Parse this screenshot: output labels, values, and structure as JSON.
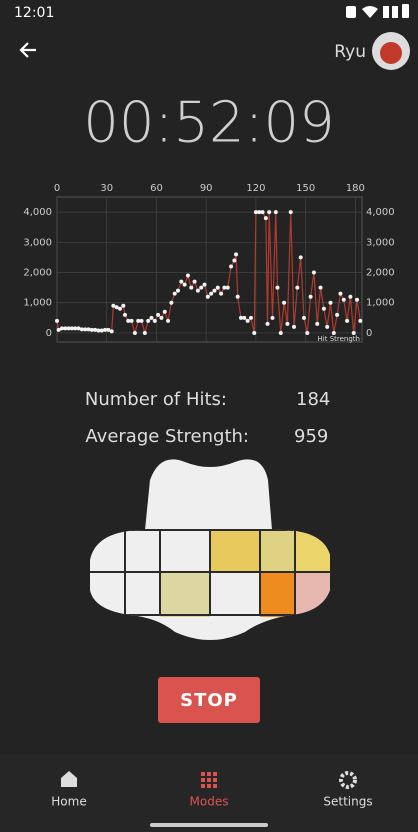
{
  "status": {
    "time": "12:01"
  },
  "header": {
    "user": "Ryu"
  },
  "timer": "00:52:09",
  "chart_data": {
    "type": "line",
    "x": [
      0,
      1,
      3,
      5,
      7,
      9,
      11,
      13,
      15,
      17,
      19,
      21,
      23,
      25,
      27,
      29,
      31,
      33,
      34,
      36,
      38,
      40,
      41,
      43,
      45,
      47,
      49,
      51,
      53,
      55,
      57,
      59,
      61,
      63,
      65,
      67,
      69,
      71,
      73,
      75,
      77,
      79,
      81,
      83,
      85,
      87,
      89,
      91,
      93,
      95,
      97,
      99,
      101,
      103,
      105,
      107,
      108,
      109,
      111,
      113,
      115,
      117,
      119,
      120,
      122,
      124,
      126,
      127,
      128,
      130,
      132,
      133,
      135,
      137,
      139,
      141,
      143,
      145,
      147,
      149,
      151,
      153,
      155,
      157,
      159,
      161,
      163,
      165,
      167,
      169,
      171,
      173,
      175,
      177,
      179,
      181,
      183
    ],
    "series": [
      {
        "name": "Hit Strength",
        "color": "#b03a2e",
        "values": [
          400,
          100,
          150,
          150,
          150,
          150,
          150,
          150,
          120,
          120,
          120,
          100,
          100,
          80,
          80,
          100,
          100,
          50,
          900,
          850,
          800,
          900,
          600,
          400,
          400,
          0,
          400,
          400,
          0,
          400,
          500,
          400,
          600,
          500,
          700,
          400,
          1000,
          1300,
          1400,
          1700,
          1600,
          1900,
          1500,
          1700,
          1400,
          1500,
          1600,
          1200,
          1300,
          1400,
          1500,
          1300,
          1500,
          1500,
          2200,
          2400,
          2600,
          1200,
          500,
          500,
          400,
          500,
          0,
          4000,
          4000,
          4000,
          3800,
          300,
          4000,
          500,
          4000,
          1500,
          0,
          1000,
          300,
          4000,
          200,
          1500,
          2500,
          500,
          0,
          1200,
          2000,
          300,
          1500,
          800,
          200,
          1000,
          0,
          600,
          1300,
          1100,
          400,
          1200,
          0,
          1100,
          400
        ]
      }
    ],
    "xlim": [
      0,
      184
    ],
    "xticks": [
      0,
      30,
      60,
      90,
      120,
      150,
      180
    ],
    "ylim": [
      -300,
      4500
    ],
    "yticks": [
      0,
      {
        "value": 1000,
        "label": "1,000"
      },
      {
        "value": 2000,
        "label": "2,000"
      },
      {
        "value": 3000,
        "label": "3,000"
      },
      {
        "value": 4000,
        "label": "4,000"
      }
    ],
    "grid": true
  },
  "stats": [
    {
      "label": "Number of Hits:",
      "value": 184
    },
    {
      "label": "Average Strength:",
      "value": 959
    }
  ],
  "button": "STOP",
  "nav": [
    {
      "label": "Home"
    },
    {
      "label": "Modes"
    },
    {
      "label": "Settings"
    }
  ]
}
